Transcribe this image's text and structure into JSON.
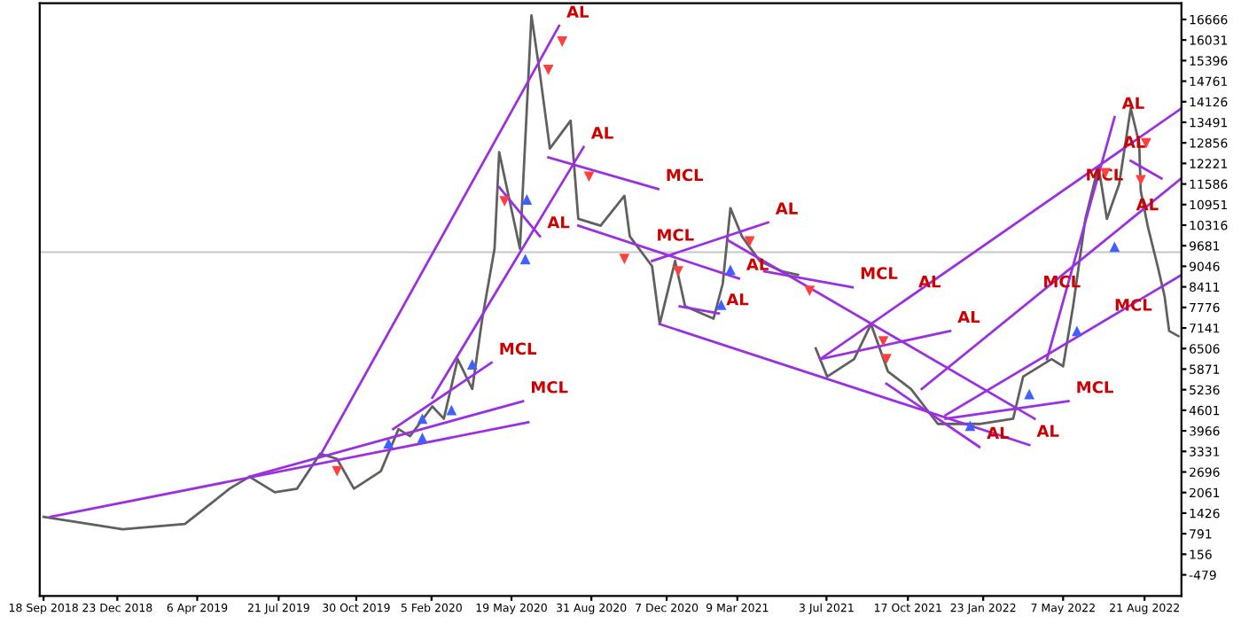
{
  "chart_data": {
    "type": "line",
    "grid": false,
    "xlim": [
      "2018-09-13",
      "2022-10-08"
    ],
    "ylim": [
      -1130,
      17170
    ],
    "xticks": [
      {
        "value": "2018-09-18",
        "label": "18 Sep 2018"
      },
      {
        "value": "2018-12-23",
        "label": "23 Dec 2018"
      },
      {
        "value": "2019-04-06",
        "label": "6 Apr 2019"
      },
      {
        "value": "2019-07-21",
        "label": "21 Jul 2019"
      },
      {
        "value": "2019-10-30",
        "label": "30 Oct 2019"
      },
      {
        "value": "2020-02-05",
        "label": "5 Feb 2020"
      },
      {
        "value": "2020-05-19",
        "label": "19 May 2020"
      },
      {
        "value": "2020-08-31",
        "label": "31 Aug 2020"
      },
      {
        "value": "2020-12-07",
        "label": "7 Dec 2020"
      },
      {
        "value": "2021-03-09",
        "label": "9 Mar 2021"
      },
      {
        "value": "2021-07-03",
        "label": "3 Jul 2021"
      },
      {
        "value": "2021-10-17",
        "label": "17 Oct 2021"
      },
      {
        "value": "2022-01-23",
        "label": "23 Jan 2022"
      },
      {
        "value": "2022-05-07",
        "label": "7 May 2022"
      },
      {
        "value": "2022-08-21",
        "label": "21 Aug 2022"
      }
    ],
    "yticks": [
      -479,
      156,
      791,
      1426,
      2061,
      2696,
      3331,
      3966,
      4601,
      5236,
      5871,
      6506,
      7141,
      7776,
      8411,
      9046,
      9681,
      10316,
      10951,
      11586,
      12221,
      12856,
      13491,
      14126,
      14761,
      15396,
      16031,
      16666
    ],
    "ref_lines": [
      {
        "axis": "y",
        "value": 9480,
        "color": "#c8c8c8"
      }
    ],
    "series": [
      {
        "color": "#606060",
        "x": [
          "2018-09-18",
          "2018-12-30",
          "2019-03-21",
          "2019-04-19",
          "2019-05-18",
          "2019-06-13",
          "2019-07-16",
          "2019-08-14",
          "2019-09-13",
          "2019-10-05",
          "2019-10-27",
          "2019-12-01",
          "2019-12-24",
          "2020-01-08",
          "2020-02-06",
          "2020-02-21",
          "2020-03-10",
          "2020-03-29",
          "2020-04-11",
          "2020-04-27",
          "2020-05-03",
          "2020-05-30",
          "2020-06-14",
          "2020-06-25",
          "2020-07-08",
          "2020-08-04",
          "2020-08-14",
          "2020-09-12",
          "2020-10-13",
          "2020-10-20",
          "2020-11-18",
          "2020-11-28",
          "2020-12-18",
          "2020-12-31",
          "2021-02-06",
          "2021-02-18",
          "2021-02-28",
          "2021-03-15",
          "2021-04-07",
          "2021-05-06",
          "2021-05-27",
          "2021-06-07",
          "2021-06-19",
          "2021-07-04",
          "2021-08-08",
          "2021-08-30",
          "2021-09-21",
          "2021-10-21",
          "2021-11-25",
          "2021-12-18",
          "2022-01-18",
          "2022-03-03",
          "2022-03-16",
          "2022-04-22",
          "2022-05-07",
          "2022-05-20",
          "2022-06-05",
          "2022-06-22",
          "2022-07-03",
          "2022-07-19",
          "2022-08-03",
          "2022-08-14",
          "2022-08-16",
          "2022-08-25",
          "2022-09-07",
          "2022-09-16",
          "2022-09-22",
          "2022-10-04"
        ],
        "values": [
          1310,
          930,
          1090,
          1630,
          2180,
          2550,
          2070,
          2180,
          3260,
          3100,
          2180,
          2720,
          4020,
          3800,
          4720,
          4340,
          6180,
          5260,
          7430,
          9590,
          12570,
          9590,
          16790,
          15000,
          12680,
          13540,
          10510,
          10300,
          11220,
          9970,
          9050,
          7260,
          9210,
          7810,
          7430,
          8510,
          10840,
          9970,
          9210,
          8890,
          8780,
          null,
          6510,
          5640,
          6180,
          7260,
          5800,
          5260,
          4180,
          4180,
          4180,
          4340,
          5640,
          6180,
          5960,
          7810,
          10510,
          12140,
          10510,
          11590,
          13920,
          12840,
          11380,
          10300,
          9050,
          8130,
          7050,
          6890
        ]
      },
      {
        "type": "line",
        "color": "#9b30e0",
        "x": [
          "2018-09-27",
          "2020-06-10"
        ],
        "values": [
          1310,
          4230
        ]
      },
      {
        "type": "line",
        "color": "#9b30e0",
        "x": [
          "2019-09-13",
          "2020-07-20"
        ],
        "values": [
          3200,
          16470
        ]
      },
      {
        "type": "line",
        "color": "#9b30e0",
        "x": [
          "2019-06-13",
          "2020-06-03"
        ],
        "values": [
          2550,
          4880
        ]
      },
      {
        "type": "line",
        "color": "#9b30e0",
        "x": [
          "2019-12-17",
          "2020-04-23"
        ],
        "values": [
          4020,
          6070
        ]
      },
      {
        "type": "line",
        "color": "#9b30e0",
        "x": [
          "2020-02-06",
          "2020-08-21"
        ],
        "values": [
          4990,
          12730
        ]
      },
      {
        "type": "line",
        "color": "#9b30e0",
        "x": [
          "2020-05-03",
          "2020-06-25"
        ],
        "values": [
          11490,
          9970
        ]
      },
      {
        "type": "line",
        "color": "#9b30e0",
        "x": [
          "2020-07-06",
          "2020-11-26"
        ],
        "values": [
          12410,
          11430
        ]
      },
      {
        "type": "line",
        "color": "#9b30e0",
        "x": [
          "2020-08-14",
          "2021-03-11"
        ],
        "values": [
          10300,
          8670
        ]
      },
      {
        "type": "line",
        "color": "#9b30e0",
        "x": [
          "2020-11-18",
          "2021-04-18"
        ],
        "values": [
          9210,
          10400
        ]
      },
      {
        "type": "line",
        "color": "#9b30e0",
        "x": [
          "2020-11-28",
          "2022-03-24"
        ],
        "values": [
          7260,
          3530
        ]
      },
      {
        "type": "line",
        "color": "#9b30e0",
        "x": [
          "2020-12-24",
          "2021-02-13"
        ],
        "values": [
          7810,
          7590
        ]
      },
      {
        "type": "line",
        "color": "#9b30e0",
        "x": [
          "2021-02-24",
          "2022-03-31"
        ],
        "values": [
          9860,
          4340
        ]
      },
      {
        "type": "line",
        "color": "#9b30e0",
        "x": [
          "2021-09-19",
          "2022-01-18"
        ],
        "values": [
          5420,
          3470
        ]
      },
      {
        "type": "line",
        "color": "#9b30e0",
        "x": [
          "2021-04-13",
          "2021-08-06"
        ],
        "values": [
          8890,
          8400
        ]
      },
      {
        "type": "line",
        "color": "#9b30e0",
        "x": [
          "2021-06-25",
          "2022-10-08"
        ],
        "values": [
          6180,
          13920
        ]
      },
      {
        "type": "line",
        "color": "#9b30e0",
        "x": [
          "2021-06-25",
          "2021-12-11"
        ],
        "values": [
          6180,
          7050
        ]
      },
      {
        "type": "line",
        "color": "#9b30e0",
        "x": [
          "2022-04-16",
          "2022-07-13"
        ],
        "values": [
          6180,
          13650
        ]
      },
      {
        "type": "line",
        "color": "#9b30e0",
        "x": [
          "2021-11-04",
          "2022-10-08"
        ],
        "values": [
          5260,
          11760
        ]
      },
      {
        "type": "line",
        "color": "#9b30e0",
        "x": [
          "2021-12-05",
          "2022-10-08"
        ],
        "values": [
          4450,
          8780
        ]
      },
      {
        "type": "line",
        "color": "#9b30e0",
        "x": [
          "2021-12-05",
          "2022-05-14"
        ],
        "values": [
          4340,
          4880
        ]
      },
      {
        "type": "line",
        "color": "#9b30e0",
        "x": [
          "2022-08-03",
          "2022-09-12"
        ],
        "values": [
          12300,
          11760
        ]
      },
      {
        "type": "scatter",
        "marker": "triangle_down",
        "color": "#ff4040",
        "x": [
          "2019-10-05",
          "2020-07-24",
          "2020-07-06",
          "2020-05-10",
          "2020-08-28",
          "2020-10-13",
          "2020-12-22",
          "2021-03-25",
          "2021-06-11",
          "2021-09-15",
          "2021-09-19",
          "2022-07-01",
          "2022-08-23",
          "2022-08-16"
        ],
        "values": [
          2720,
          15980,
          15110,
          11050,
          11810,
          9270,
          8890,
          9810,
          8290,
          6730,
          6180,
          11920,
          12840,
          11700
        ]
      },
      {
        "type": "scatter",
        "marker": "triangle",
        "color": "#4060ff",
        "x": [
          "2019-12-11",
          "2020-01-24",
          "2020-01-24",
          "2020-03-02",
          "2020-03-29",
          "2020-06-08",
          "2020-06-06",
          "2021-02-28",
          "2021-02-16",
          "2022-01-06",
          "2022-03-24",
          "2022-05-25",
          "2022-07-13"
        ],
        "values": [
          3580,
          4340,
          3750,
          4610,
          6020,
          11110,
          9270,
          8940,
          7860,
          4120,
          5100,
          7050,
          9650
        ]
      }
    ],
    "annotations": [
      {
        "text": "AL",
        "x": "2020-07-20",
        "y": 16470
      },
      {
        "text": "AL",
        "x": "2020-08-21",
        "y": 12730
      },
      {
        "text": "AL",
        "x": "2020-06-25",
        "y": 9970
      },
      {
        "text": "MCL",
        "x": "2020-11-26",
        "y": 11430
      },
      {
        "text": "MCL",
        "x": "2020-11-14",
        "y": 9580
      },
      {
        "text": "MCL",
        "x": "2020-04-23",
        "y": 6070
      },
      {
        "text": "MCL",
        "x": "2020-06-03",
        "y": 4880
      },
      {
        "text": "AL",
        "x": "2021-04-18",
        "y": 10400
      },
      {
        "text": "AL",
        "x": "2021-03-11",
        "y": 8670
      },
      {
        "text": "AL",
        "x": "2021-02-13",
        "y": 7590
      },
      {
        "text": "MCL",
        "x": "2021-08-06",
        "y": 8400
      },
      {
        "text": "AL",
        "x": "2021-10-21",
        "y": 8140
      },
      {
        "text": "AL",
        "x": "2021-12-11",
        "y": 7050
      },
      {
        "text": "MCL",
        "x": "2022-04-01",
        "y": 8140
      },
      {
        "text": "MCL",
        "x": "2022-07-03",
        "y": 7420
      },
      {
        "text": "MCL",
        "x": "2022-05-14",
        "y": 4880
      },
      {
        "text": "AL",
        "x": "2022-03-24",
        "y": 3530
      },
      {
        "text": "AL",
        "x": "2022-01-18",
        "y": 3470
      },
      {
        "text": "AL",
        "x": "2022-07-13",
        "y": 13650
      },
      {
        "text": "AL",
        "x": "2022-09-01",
        "y": 13310
      },
      {
        "text": "MCL",
        "x": "2022-08-03",
        "y": 12300
      },
      {
        "text": "AL",
        "x": "2022-09-18",
        "y": 11380
      }
    ]
  }
}
